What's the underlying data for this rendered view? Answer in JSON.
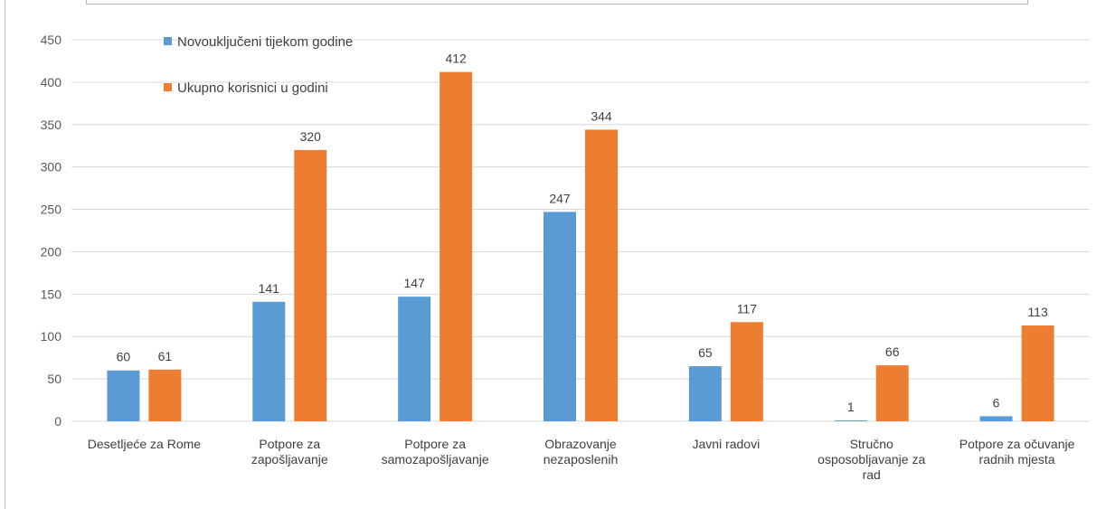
{
  "chart_data": {
    "type": "bar",
    "categories": [
      [
        "Desetljeće za Rome"
      ],
      [
        "Potpore za",
        "zapošljavanje"
      ],
      [
        "Potpore za",
        "samozapošljavanje"
      ],
      [
        "Obrazovanje",
        "nezaposlenih"
      ],
      [
        "Javni radovi"
      ],
      [
        "Stručno",
        "osposobljavanje za",
        "rad"
      ],
      [
        "Potpore za očuvanje",
        "radnih mjesta"
      ]
    ],
    "series": [
      {
        "name": "Novouključeni tijekom godine",
        "color": "#5b9bd5",
        "values": [
          60,
          141,
          147,
          247,
          65,
          1,
          6
        ],
        "labels": [
          "60",
          "141",
          "147",
          "247",
          "65",
          "1",
          "6"
        ]
      },
      {
        "name": "Ukupno korisnici u godini",
        "color": "#ed7d31",
        "values": [
          61,
          320,
          412,
          344,
          117,
          66,
          113
        ],
        "labels": [
          "61",
          "320",
          "412",
          "344",
          "117",
          "66",
          "113"
        ]
      }
    ],
    "ylim": [
      0,
      450
    ],
    "yticks": [
      0,
      50,
      100,
      150,
      200,
      250,
      300,
      350,
      400,
      450
    ],
    "ytick_labels": [
      "0",
      "50",
      "100",
      "150",
      "200",
      "250",
      "300",
      "350",
      "400",
      "450"
    ],
    "grid": true,
    "legend_position": "top-left",
    "title": "",
    "xlabel": "",
    "ylabel": ""
  }
}
